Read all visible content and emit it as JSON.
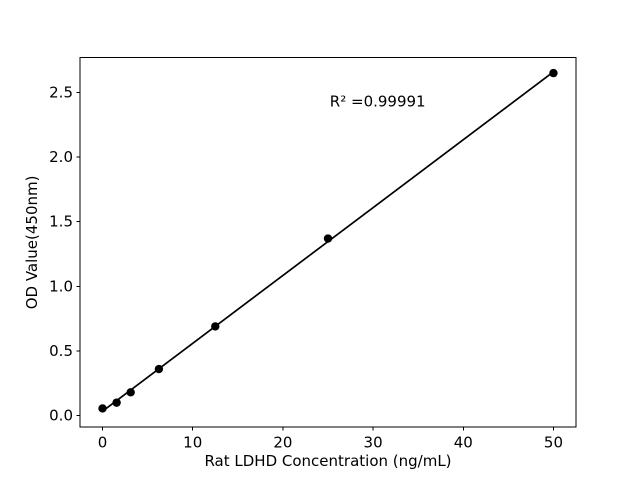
{
  "figure": {
    "background": "#ffffff"
  },
  "chart_data": {
    "type": "scatter",
    "title": "",
    "xlabel": "Rat LDHD Concentration (ng/mL)",
    "ylabel": "OD Value(450nm)",
    "x": [
      0,
      1.56,
      3.12,
      6.25,
      12.5,
      25,
      50
    ],
    "y": [
      0.055,
      0.1,
      0.18,
      0.36,
      0.69,
      1.37,
      2.65
    ],
    "fit_line": true,
    "annotation": {
      "text": "R² =0.99991",
      "x": 25.2,
      "y": 2.43
    },
    "r_squared": "0.99991",
    "xlim": [
      -2.5,
      52.5
    ],
    "ylim": [
      -0.09,
      2.77
    ],
    "xticks": {
      "values": [
        0,
        10,
        20,
        30,
        40,
        50
      ],
      "labels": [
        "0",
        "10",
        "20",
        "30",
        "40",
        "50"
      ]
    },
    "yticks": {
      "values": [
        0,
        0.5,
        1.0,
        1.5,
        2.0,
        2.5
      ],
      "labels": [
        "0.0",
        "0.5",
        "1.0",
        "1.5",
        "2.0",
        "2.5"
      ]
    },
    "grid": false,
    "legend": "none",
    "colors": {
      "marker": "#000000",
      "line": "#000000",
      "axis": "#000000",
      "text": "#000000",
      "background": "#ffffff"
    }
  }
}
